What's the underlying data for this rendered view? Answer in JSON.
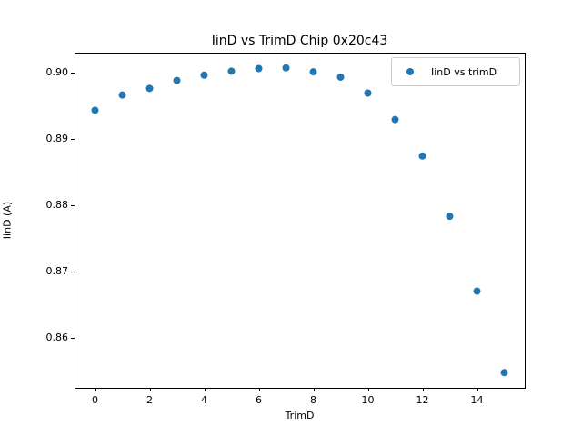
{
  "chart_data": {
    "type": "scatter",
    "title": "IinD vs TrimD Chip 0x20c43",
    "xlabel": "TrimD",
    "ylabel": "IinD (A)",
    "legend": {
      "label": "IinD vs trimD",
      "position": "upper right",
      "marker": "dot-icon"
    },
    "marker_color": "#1f77b4",
    "grid": false,
    "x": [
      0,
      1,
      2,
      3,
      4,
      5,
      6,
      7,
      8,
      9,
      10,
      11,
      12,
      13,
      14,
      15
    ],
    "y": [
      0.8943,
      0.8966,
      0.8976,
      0.8988,
      0.8996,
      0.9002,
      0.9006,
      0.9007,
      0.9001,
      0.8993,
      0.8969,
      0.8929,
      0.8874,
      0.8783,
      0.867,
      0.8547
    ],
    "xlim": [
      -0.75,
      15.75
    ],
    "ylim": [
      0.8524,
      0.903
    ],
    "x_ticks": {
      "values": [
        0,
        2,
        4,
        6,
        8,
        10,
        12,
        14
      ],
      "labels": [
        "0",
        "2",
        "4",
        "6",
        "8",
        "10",
        "12",
        "14"
      ]
    },
    "y_ticks": {
      "values": [
        0.86,
        0.87,
        0.88,
        0.89,
        0.9
      ],
      "labels": [
        "0.86",
        "0.87",
        "0.88",
        "0.89",
        "0.90"
      ]
    }
  }
}
